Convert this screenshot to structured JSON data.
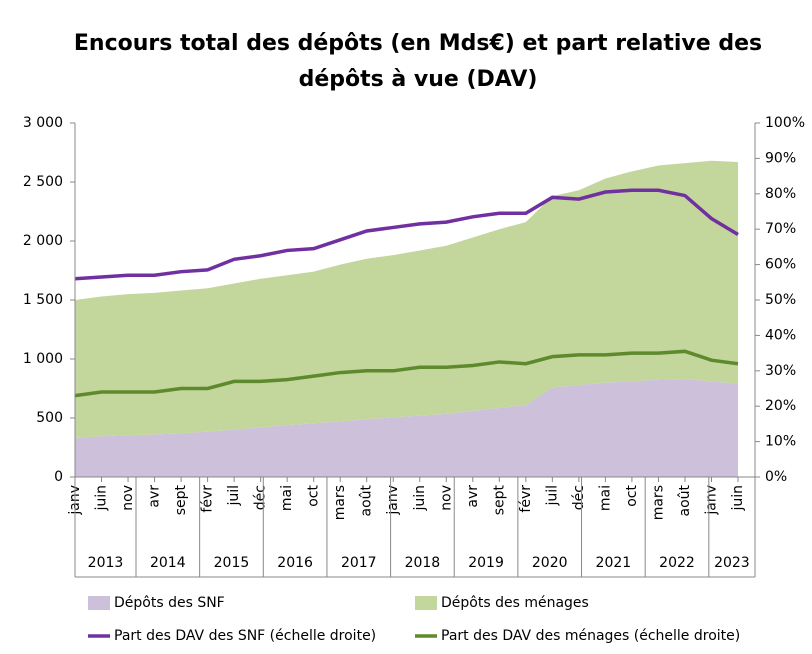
{
  "chart_data": {
    "type": "area_line",
    "title": [
      "Encours total des dépôts (en Mds€) et part relative des",
      "dépôts à vue (DAV)"
    ],
    "categories": [
      "janv",
      "juin",
      "nov",
      "avr",
      "sept",
      "févr",
      "juil",
      "déc",
      "mai",
      "oct",
      "mars",
      "août",
      "janv",
      "juin",
      "nov",
      "avr",
      "sept",
      "févr",
      "juil",
      "déc",
      "mai",
      "oct",
      "mars",
      "août",
      "janv",
      "juin"
    ],
    "years": [
      "2013",
      "2014",
      "2015",
      "2016",
      "2017",
      "2018",
      "2019",
      "2020",
      "2021",
      "2022",
      "2023"
    ],
    "series": [
      {
        "name": "Dépôts des SNF",
        "type": "area",
        "stacked": true,
        "color": "#ccc0da",
        "values": [
          330,
          345,
          355,
          360,
          370,
          385,
          400,
          420,
          440,
          455,
          470,
          490,
          505,
          520,
          535,
          560,
          585,
          610,
          760,
          780,
          800,
          810,
          825,
          830,
          810,
          790
        ]
      },
      {
        "name": "Dépôts des ménages",
        "type": "area",
        "stacked": true,
        "color": "#c3d69b",
        "values": [
          1170,
          1185,
          1195,
          1200,
          1210,
          1215,
          1240,
          1260,
          1270,
          1285,
          1330,
          1360,
          1375,
          1400,
          1425,
          1470,
          1515,
          1550,
          1620,
          1650,
          1730,
          1780,
          1815,
          1830,
          1870,
          1880
        ]
      },
      {
        "name": "Part des DAV des SNF (échelle droite)",
        "type": "line",
        "axis": "y2",
        "color": "#7030a0",
        "values": [
          56,
          56.5,
          57,
          57,
          58,
          58.5,
          61.5,
          62.5,
          64,
          64.5,
          67,
          69.5,
          70.5,
          71.5,
          72,
          73.5,
          74.5,
          74.5,
          79,
          78.5,
          80.5,
          81,
          81,
          79.5,
          73,
          68.5
        ]
      },
      {
        "name": "Part des DAV des ménages (échelle droite)",
        "type": "line",
        "axis": "y2",
        "color": "#5e8a2e",
        "values": [
          23,
          24,
          24,
          24,
          25,
          25,
          27,
          27,
          27.5,
          28.5,
          29.5,
          30,
          30,
          31,
          31,
          31.5,
          32.5,
          32,
          34,
          34.5,
          34.5,
          35,
          35,
          35.5,
          33,
          32
        ]
      }
    ],
    "ylim": [
      0,
      3000
    ],
    "yticks": [
      0,
      500,
      {
        "value": 1000,
        "label": "1 000"
      },
      {
        "value": 1500,
        "label": "1 500"
      },
      {
        "value": 2000,
        "label": "2 000"
      },
      {
        "value": 2500,
        "label": "2 500"
      },
      {
        "value": 3000,
        "label": "3 000"
      }
    ],
    "y2lim": [
      0,
      100
    ],
    "y2ticks": [
      {
        "value": 0,
        "label": "0%"
      },
      {
        "value": 10,
        "label": "10%"
      },
      {
        "value": 20,
        "label": "20%"
      },
      {
        "value": 30,
        "label": "30%"
      },
      {
        "value": 40,
        "label": "40%"
      },
      {
        "value": 50,
        "label": "50%"
      },
      {
        "value": 60,
        "label": "60%"
      },
      {
        "value": 70,
        "label": "70%"
      },
      {
        "value": 80,
        "label": "80%"
      },
      {
        "value": 90,
        "label": "90%"
      },
      {
        "value": 100,
        "label": "100%"
      }
    ]
  }
}
